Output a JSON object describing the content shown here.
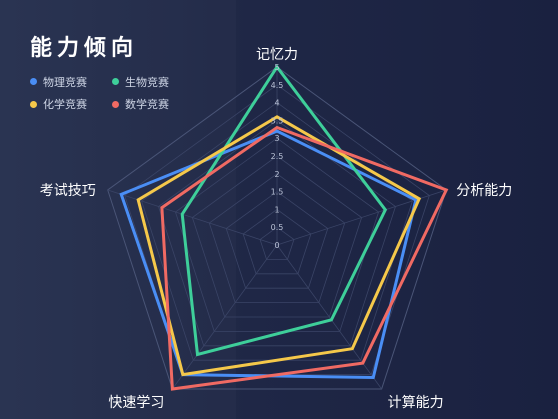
{
  "title": "能力倾向",
  "chart_data": {
    "type": "radar",
    "axes": [
      "记忆力",
      "分析能力",
      "计算能力",
      "快速学习",
      "考试技巧"
    ],
    "rmin": 0,
    "rmax": 5,
    "ticks": [
      "0",
      "0.5",
      "1",
      "1.5",
      "2",
      "2.5",
      "3",
      "3.5",
      "4",
      "4.5",
      "5"
    ],
    "series": [
      {
        "name": "物理竞赛",
        "color": "#4a8ef5",
        "values": [
          3.2,
          4.1,
          4.6,
          4.5,
          4.6
        ]
      },
      {
        "name": "生物竞赛",
        "color": "#3ecf9a",
        "values": [
          5.0,
          3.2,
          2.6,
          3.8,
          2.8
        ]
      },
      {
        "name": "化学竞赛",
        "color": "#f5c84a",
        "values": [
          3.6,
          4.2,
          3.6,
          4.5,
          4.1
        ]
      },
      {
        "name": "数学竞赛",
        "color": "#f06a63",
        "values": [
          3.3,
          5.0,
          4.1,
          5.0,
          3.4
        ]
      }
    ]
  }
}
